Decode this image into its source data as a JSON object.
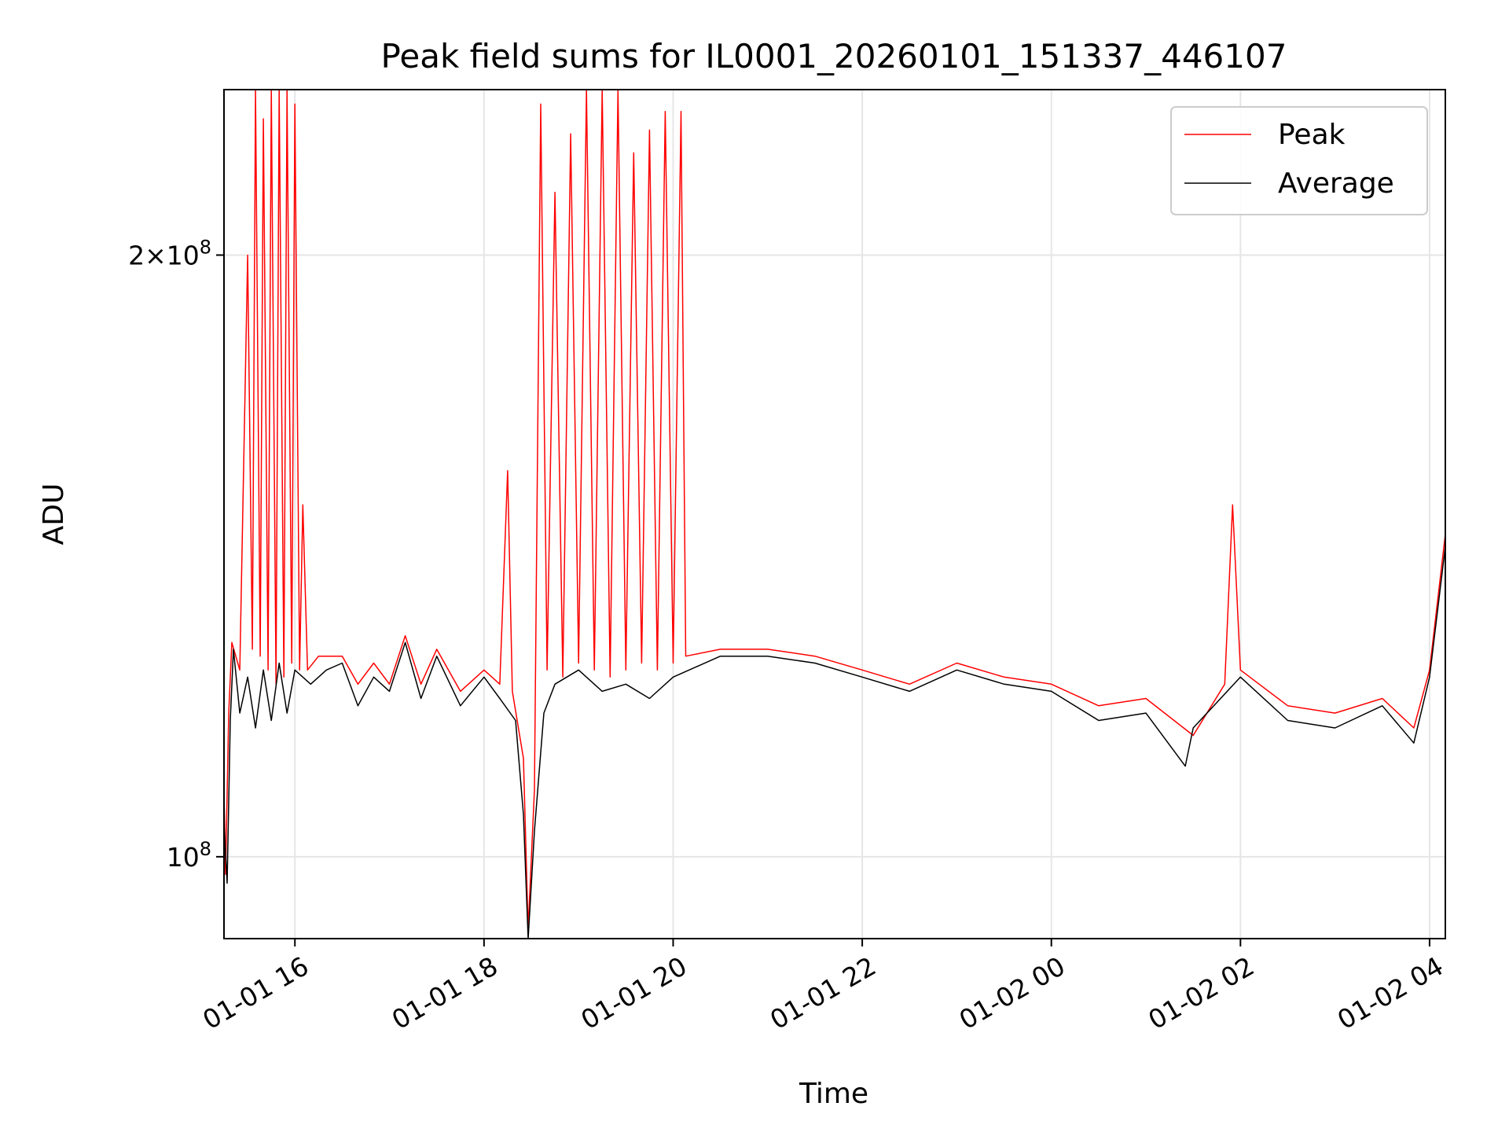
{
  "chart_data": {
    "type": "line",
    "title": "Peak field sums for IL0001_20260101_151337_446107",
    "xlabel": "Time",
    "ylabel": "ADU",
    "yscale": "log",
    "ylim": [
      91000000,
      242000000
    ],
    "xlim": [
      "2026-01-01 15:15",
      "2026-01-02 04:10"
    ],
    "x_ticks": [
      {
        "value": "2026-01-01 16:00",
        "label": "01-01 16"
      },
      {
        "value": "2026-01-01 18:00",
        "label": "01-01 18"
      },
      {
        "value": "2026-01-01 20:00",
        "label": "01-01 20"
      },
      {
        "value": "2026-01-01 22:00",
        "label": "01-01 22"
      },
      {
        "value": "2026-01-02 00:00",
        "label": "01-02 00"
      },
      {
        "value": "2026-01-02 02:00",
        "label": "01-02 02"
      },
      {
        "value": "2026-01-02 04:00",
        "label": "01-02 04"
      }
    ],
    "y_ticks": [
      {
        "value": 100000000,
        "mantissa": "",
        "exponent": "8"
      },
      {
        "value": 200000000,
        "mantissa": "2",
        "exponent": "8"
      }
    ],
    "grid": true,
    "legend_position": "upper right",
    "legend": [
      "Peak",
      "Average"
    ],
    "series": [
      {
        "name": "Peak",
        "color": "#ff0000",
        "points": [
          [
            "2026-01-01 15:15",
            108000000
          ],
          [
            "2026-01-01 15:16",
            98000000
          ],
          [
            "2026-01-01 15:18",
            118000000
          ],
          [
            "2026-01-01 15:20",
            128000000
          ],
          [
            "2026-01-01 15:25",
            124000000
          ],
          [
            "2026-01-01 15:30",
            200000000
          ],
          [
            "2026-01-01 15:33",
            127000000
          ],
          [
            "2026-01-01 15:35",
            242000000
          ],
          [
            "2026-01-01 15:38",
            126000000
          ],
          [
            "2026-01-01 15:40",
            234000000
          ],
          [
            "2026-01-01 15:43",
            124000000
          ],
          [
            "2026-01-01 15:45",
            242000000
          ],
          [
            "2026-01-01 15:48",
            122000000
          ],
          [
            "2026-01-01 15:50",
            242000000
          ],
          [
            "2026-01-01 15:53",
            123000000
          ],
          [
            "2026-01-01 15:55",
            242000000
          ],
          [
            "2026-01-01 15:58",
            125000000
          ],
          [
            "2026-01-01 16:00",
            238000000
          ],
          [
            "2026-01-01 16:03",
            124000000
          ],
          [
            "2026-01-01 16:05",
            150000000
          ],
          [
            "2026-01-01 16:08",
            124000000
          ],
          [
            "2026-01-01 16:15",
            126000000
          ],
          [
            "2026-01-01 16:30",
            126000000
          ],
          [
            "2026-01-01 16:40",
            122000000
          ],
          [
            "2026-01-01 16:50",
            125000000
          ],
          [
            "2026-01-01 17:00",
            122000000
          ],
          [
            "2026-01-01 17:10",
            129000000
          ],
          [
            "2026-01-01 17:20",
            122000000
          ],
          [
            "2026-01-01 17:30",
            127000000
          ],
          [
            "2026-01-01 17:45",
            121000000
          ],
          [
            "2026-01-01 18:00",
            124000000
          ],
          [
            "2026-01-01 18:10",
            122000000
          ],
          [
            "2026-01-01 18:15",
            156000000
          ],
          [
            "2026-01-01 18:18",
            121000000
          ],
          [
            "2026-01-01 18:25",
            112000000
          ],
          [
            "2026-01-01 18:28",
            92000000
          ],
          [
            "2026-01-01 18:32",
            108000000
          ],
          [
            "2026-01-01 18:36",
            238000000
          ],
          [
            "2026-01-01 18:40",
            124000000
          ],
          [
            "2026-01-01 18:45",
            215000000
          ],
          [
            "2026-01-01 18:50",
            123000000
          ],
          [
            "2026-01-01 18:55",
            230000000
          ],
          [
            "2026-01-01 19:00",
            125000000
          ],
          [
            "2026-01-01 19:05",
            242000000
          ],
          [
            "2026-01-01 19:10",
            124000000
          ],
          [
            "2026-01-01 19:15",
            242000000
          ],
          [
            "2026-01-01 19:20",
            123000000
          ],
          [
            "2026-01-01 19:25",
            242000000
          ],
          [
            "2026-01-01 19:30",
            124000000
          ],
          [
            "2026-01-01 19:35",
            225000000
          ],
          [
            "2026-01-01 19:40",
            125000000
          ],
          [
            "2026-01-01 19:45",
            231000000
          ],
          [
            "2026-01-01 19:50",
            124000000
          ],
          [
            "2026-01-01 19:55",
            236000000
          ],
          [
            "2026-01-01 20:00",
            125000000
          ],
          [
            "2026-01-01 20:05",
            236000000
          ],
          [
            "2026-01-01 20:08",
            126000000
          ],
          [
            "2026-01-01 20:30",
            127000000
          ],
          [
            "2026-01-01 21:00",
            127000000
          ],
          [
            "2026-01-01 21:30",
            126000000
          ],
          [
            "2026-01-01 22:00",
            124000000
          ],
          [
            "2026-01-01 22:30",
            122000000
          ],
          [
            "2026-01-01 23:00",
            125000000
          ],
          [
            "2026-01-01 23:30",
            123000000
          ],
          [
            "2026-01-02 00:00",
            122000000
          ],
          [
            "2026-01-02 00:30",
            119000000
          ],
          [
            "2026-01-02 01:00",
            120000000
          ],
          [
            "2026-01-02 01:30",
            115000000
          ],
          [
            "2026-01-02 01:50",
            122000000
          ],
          [
            "2026-01-02 01:55",
            150000000
          ],
          [
            "2026-01-02 02:00",
            124000000
          ],
          [
            "2026-01-02 02:30",
            119000000
          ],
          [
            "2026-01-02 03:00",
            118000000
          ],
          [
            "2026-01-02 03:30",
            120000000
          ],
          [
            "2026-01-02 03:50",
            116000000
          ],
          [
            "2026-01-02 04:00",
            124000000
          ],
          [
            "2026-01-02 04:10",
            145000000
          ]
        ]
      },
      {
        "name": "Average",
        "color": "#000000",
        "points": [
          [
            "2026-01-01 15:15",
            104000000
          ],
          [
            "2026-01-01 15:17",
            97000000
          ],
          [
            "2026-01-01 15:19",
            117000000
          ],
          [
            "2026-01-01 15:21",
            127000000
          ],
          [
            "2026-01-01 15:25",
            118000000
          ],
          [
            "2026-01-01 15:30",
            123000000
          ],
          [
            "2026-01-01 15:35",
            116000000
          ],
          [
            "2026-01-01 15:40",
            124000000
          ],
          [
            "2026-01-01 15:45",
            117000000
          ],
          [
            "2026-01-01 15:50",
            125000000
          ],
          [
            "2026-01-01 15:55",
            118000000
          ],
          [
            "2026-01-01 16:00",
            124000000
          ],
          [
            "2026-01-01 16:10",
            122000000
          ],
          [
            "2026-01-01 16:20",
            124000000
          ],
          [
            "2026-01-01 16:30",
            125000000
          ],
          [
            "2026-01-01 16:40",
            119000000
          ],
          [
            "2026-01-01 16:50",
            123000000
          ],
          [
            "2026-01-01 17:00",
            121000000
          ],
          [
            "2026-01-01 17:10",
            128000000
          ],
          [
            "2026-01-01 17:20",
            120000000
          ],
          [
            "2026-01-01 17:30",
            126000000
          ],
          [
            "2026-01-01 17:45",
            119000000
          ],
          [
            "2026-01-01 18:00",
            123000000
          ],
          [
            "2026-01-01 18:10",
            120000000
          ],
          [
            "2026-01-01 18:20",
            117000000
          ],
          [
            "2026-01-01 18:25",
            105000000
          ],
          [
            "2026-01-01 18:28",
            91000000
          ],
          [
            "2026-01-01 18:32",
            103000000
          ],
          [
            "2026-01-01 18:38",
            118000000
          ],
          [
            "2026-01-01 18:45",
            122000000
          ],
          [
            "2026-01-01 19:00",
            124000000
          ],
          [
            "2026-01-01 19:15",
            121000000
          ],
          [
            "2026-01-01 19:30",
            122000000
          ],
          [
            "2026-01-01 19:45",
            120000000
          ],
          [
            "2026-01-01 20:00",
            123000000
          ],
          [
            "2026-01-01 20:30",
            126000000
          ],
          [
            "2026-01-01 21:00",
            126000000
          ],
          [
            "2026-01-01 21:30",
            125000000
          ],
          [
            "2026-01-01 22:00",
            123000000
          ],
          [
            "2026-01-01 22:30",
            121000000
          ],
          [
            "2026-01-01 23:00",
            124000000
          ],
          [
            "2026-01-01 23:30",
            122000000
          ],
          [
            "2026-01-02 00:00",
            121000000
          ],
          [
            "2026-01-02 00:30",
            117000000
          ],
          [
            "2026-01-02 01:00",
            118000000
          ],
          [
            "2026-01-02 01:25",
            111000000
          ],
          [
            "2026-01-02 01:30",
            116000000
          ],
          [
            "2026-01-02 02:00",
            123000000
          ],
          [
            "2026-01-02 02:30",
            117000000
          ],
          [
            "2026-01-02 03:00",
            116000000
          ],
          [
            "2026-01-02 03:30",
            119000000
          ],
          [
            "2026-01-02 03:50",
            114000000
          ],
          [
            "2026-01-02 04:00",
            123000000
          ],
          [
            "2026-01-02 04:10",
            143000000
          ]
        ]
      }
    ]
  }
}
